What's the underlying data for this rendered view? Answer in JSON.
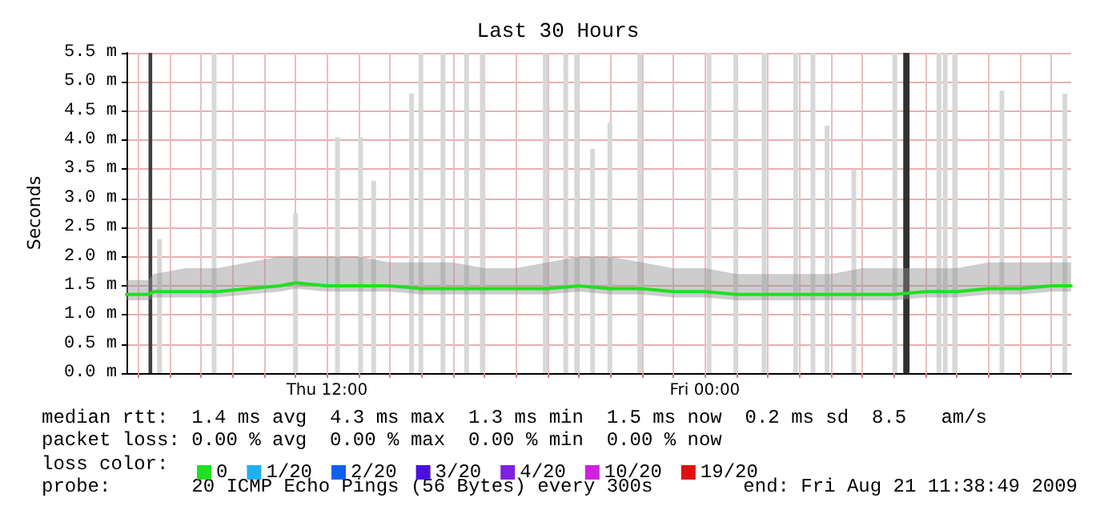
{
  "chart_data": {
    "type": "line",
    "title": "Last 30 Hours",
    "ylabel": "Seconds",
    "legend_title": "loss color:",
    "legend": "bottom",
    "grid": true,
    "marker": "none",
    "line_style": "solid",
    "xlim": [
      "2009-08-20T05:38",
      "2009-08-21T11:38"
    ],
    "xticks": [
      {
        "value": "2009-08-20T06:00",
        "label": null
      },
      {
        "value": "2009-08-20T07:00",
        "label": null
      },
      {
        "value": "2009-08-20T08:00",
        "label": null
      },
      {
        "value": "2009-08-20T09:00",
        "label": null
      },
      {
        "value": "2009-08-20T10:00",
        "label": null
      },
      {
        "value": "2009-08-20T11:00",
        "label": null
      },
      {
        "value": "2009-08-20T12:00",
        "label": "Thu 12:00"
      },
      {
        "value": "2009-08-20T13:00",
        "label": null
      },
      {
        "value": "2009-08-20T14:00",
        "label": null
      },
      {
        "value": "2009-08-20T15:00",
        "label": null
      },
      {
        "value": "2009-08-20T16:00",
        "label": null
      },
      {
        "value": "2009-08-20T17:00",
        "label": null
      },
      {
        "value": "2009-08-20T18:00",
        "label": null
      },
      {
        "value": "2009-08-20T19:00",
        "label": null
      },
      {
        "value": "2009-08-20T20:00",
        "label": null
      },
      {
        "value": "2009-08-20T21:00",
        "label": null
      },
      {
        "value": "2009-08-20T22:00",
        "label": null
      },
      {
        "value": "2009-08-20T23:00",
        "label": null
      },
      {
        "value": "2009-08-21T00:00",
        "label": "Fri 00:00"
      },
      {
        "value": "2009-08-21T01:00",
        "label": null
      },
      {
        "value": "2009-08-21T02:00",
        "label": null
      },
      {
        "value": "2009-08-21T03:00",
        "label": null
      },
      {
        "value": "2009-08-21T04:00",
        "label": null
      },
      {
        "value": "2009-08-21T05:00",
        "label": null
      },
      {
        "value": "2009-08-21T06:00",
        "label": null
      },
      {
        "value": "2009-08-21T07:00",
        "label": null
      },
      {
        "value": "2009-08-21T08:00",
        "label": null
      },
      {
        "value": "2009-08-21T09:00",
        "label": null
      },
      {
        "value": "2009-08-21T10:00",
        "label": null
      },
      {
        "value": "2009-08-21T11:00",
        "label": null
      }
    ],
    "ylim": [
      0,
      5.5
    ],
    "yticks": [
      {
        "value": 0,
        "label": "0.0 m"
      },
      {
        "value": 0.5,
        "label": "0.5 m"
      },
      {
        "value": 1,
        "label": "1.0 m"
      },
      {
        "value": 1.5,
        "label": "1.5 m"
      },
      {
        "value": 2,
        "label": "2.0 m"
      },
      {
        "value": 2.5,
        "label": "2.5 m"
      },
      {
        "value": 3,
        "label": "3.0 m"
      },
      {
        "value": 3.5,
        "label": "3.5 m"
      },
      {
        "value": 4,
        "label": "4.0 m"
      },
      {
        "value": 4.5,
        "label": "4.5 m"
      },
      {
        "value": 5,
        "label": "5.0 m"
      },
      {
        "value": 5.5,
        "label": "5.5 m"
      }
    ],
    "bands": [
      {
        "axis": "x",
        "from": "2009-08-20T06:20",
        "to": "2009-08-20T06:27",
        "color": "#404040"
      },
      {
        "axis": "x",
        "from": "2009-08-21T06:18",
        "to": "2009-08-21T06:30",
        "color": "#303030"
      }
    ],
    "series": [
      {
        "type": "bar",
        "color": "#d8d8d8",
        "x": [
          "2009-08-20T06:41",
          "2009-08-20T08:25",
          "2009-08-20T11:00",
          "2009-08-20T12:20",
          "2009-08-20T13:04",
          "2009-08-20T13:29",
          "2009-08-20T14:41",
          "2009-08-20T14:59",
          "2009-08-20T15:41",
          "2009-08-20T16:26",
          "2009-08-20T16:56",
          "2009-08-20T18:56",
          "2009-08-20T19:35",
          "2009-08-20T19:56",
          "2009-08-20T20:26",
          "2009-08-20T20:59",
          "2009-08-20T21:56",
          "2009-08-21T00:08",
          "2009-08-21T00:59",
          "2009-08-21T01:53",
          "2009-08-21T02:53",
          "2009-08-21T03:26",
          "2009-08-21T03:53",
          "2009-08-21T04:44",
          "2009-08-21T06:02",
          "2009-08-21T07:26",
          "2009-08-21T07:38",
          "2009-08-21T07:56",
          "2009-08-21T09:26",
          "2009-08-21T11:26"
        ],
        "values": [
          2.3,
          5.5,
          2.75,
          4.05,
          4.05,
          3.3,
          4.8,
          5.5,
          5.5,
          5.5,
          5.5,
          5.5,
          5.5,
          5.5,
          3.85,
          4.3,
          5.5,
          5.5,
          5.5,
          5.5,
          5.5,
          5.5,
          4.25,
          3.5,
          5.5,
          5.5,
          5.5,
          5.5,
          4.85,
          4.8
        ]
      },
      {
        "name": "0",
        "color": "#20e020",
        "x": [
          "2009-08-20T05:38",
          "2009-08-20T06:20",
          "2009-08-20T06:30",
          "2009-08-20T07:30",
          "2009-08-20T08:30",
          "2009-08-20T09:30",
          "2009-08-20T10:30",
          "2009-08-20T11:00",
          "2009-08-20T12:00",
          "2009-08-20T13:00",
          "2009-08-20T14:00",
          "2009-08-20T15:00",
          "2009-08-20T16:00",
          "2009-08-20T17:00",
          "2009-08-20T18:00",
          "2009-08-20T19:00",
          "2009-08-20T20:00",
          "2009-08-20T21:00",
          "2009-08-20T22:00",
          "2009-08-20T23:00",
          "2009-08-21T00:00",
          "2009-08-21T01:00",
          "2009-08-21T02:00",
          "2009-08-21T03:00",
          "2009-08-21T04:00",
          "2009-08-21T05:00",
          "2009-08-21T06:00",
          "2009-08-21T07:00",
          "2009-08-21T08:00",
          "2009-08-21T09:00",
          "2009-08-21T10:00",
          "2009-08-21T11:00",
          "2009-08-21T11:38"
        ],
        "values": [
          1.35,
          1.35,
          1.4,
          1.4,
          1.4,
          1.45,
          1.5,
          1.55,
          1.5,
          1.5,
          1.5,
          1.45,
          1.45,
          1.45,
          1.45,
          1.45,
          1.5,
          1.45,
          1.45,
          1.4,
          1.4,
          1.35,
          1.35,
          1.35,
          1.35,
          1.35,
          1.35,
          1.4,
          1.4,
          1.45,
          1.45,
          1.5,
          1.5
        ],
        "lower": [
          1.25,
          1.25,
          1.3,
          1.3,
          1.3,
          1.35,
          1.4,
          1.45,
          1.4,
          1.4,
          1.4,
          1.35,
          1.35,
          1.35,
          1.35,
          1.35,
          1.4,
          1.35,
          1.35,
          1.3,
          1.3,
          1.25,
          1.25,
          1.25,
          1.25,
          1.25,
          1.25,
          1.3,
          1.3,
          1.35,
          1.35,
          1.4,
          1.4
        ],
        "upper": [
          1.6,
          1.6,
          1.7,
          1.8,
          1.8,
          1.9,
          2.0,
          2.0,
          2.0,
          2.0,
          1.9,
          1.9,
          1.9,
          1.8,
          1.8,
          1.9,
          2.0,
          2.0,
          1.9,
          1.8,
          1.8,
          1.7,
          1.7,
          1.7,
          1.7,
          1.8,
          1.8,
          1.8,
          1.8,
          1.9,
          1.9,
          1.9,
          1.9
        ]
      },
      {
        "name": "1/20",
        "color": "#20b0f0"
      },
      {
        "name": "2/20",
        "color": "#1060f0"
      },
      {
        "name": "3/20",
        "color": "#4a10e0"
      },
      {
        "name": "4/20",
        "color": "#8020e0"
      },
      {
        "name": "10/20",
        "color": "#d020e0"
      },
      {
        "name": "19/20",
        "color": "#e01010"
      }
    ],
    "annotations": [
      "median rtt:  1.4 ms avg  4.3 ms max  1.3 ms min  1.5 ms now  0.2 ms sd  8.5   am/s",
      "packet loss: 0.00 % avg  0.00 % max  0.00 % min  0.00 % now",
      "probe:       20 ICMP Echo Pings (56 Bytes) every 300s",
      "end: Fri Aug 21 11:38:49 2009"
    ]
  }
}
